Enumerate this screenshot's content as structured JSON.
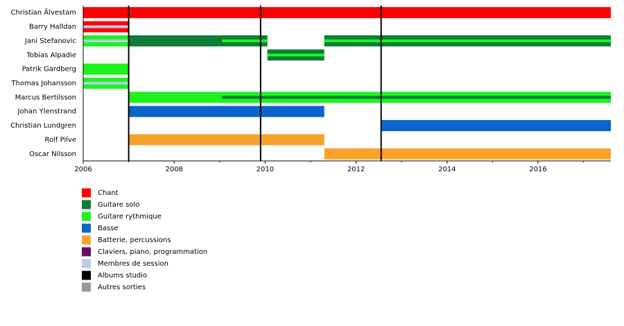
{
  "chart_data": {
    "type": "timeline",
    "rows": [
      "Christian Älvestam",
      "Barry Halldan",
      "Jani Stefanovic",
      "Tobias Alpadie",
      "Patrik Gardberg",
      "Thomas Johansson",
      "Marcus Bertilsson",
      "Johan Ylenstrand",
      "Christian Lundgren",
      "Rolf Pilve",
      "Oscar Nilsson"
    ],
    "xlim": [
      2006,
      2017.6
    ],
    "xticks": [
      2006,
      2008,
      2010,
      2012,
      2014,
      2016
    ],
    "xminor": [
      2007,
      2009,
      2011,
      2013,
      2015,
      2017
    ],
    "series": [
      {
        "name": "Chant",
        "color": "#ff0000",
        "bars": [
          {
            "row": 0,
            "start": 2006,
            "end": 2017.6
          },
          {
            "row": 1,
            "start": 2006,
            "end": 2007
          }
        ],
        "stripes": []
      },
      {
        "name": "Guitare solo",
        "color": "#0d7d38",
        "bars": [
          {
            "row": 2,
            "start": 2007,
            "end": 2010.05
          },
          {
            "row": 2,
            "start": 2011.3,
            "end": 2017.6
          },
          {
            "row": 3,
            "start": 2010.05,
            "end": 2011.3
          }
        ],
        "stripes": [
          {
            "row": 6,
            "start": 2009.05,
            "end": 2017.6
          }
        ]
      },
      {
        "name": "Guitare rythmique",
        "color": "#1ef21e",
        "bars": [
          {
            "row": 2,
            "start": 2006,
            "end": 2007
          },
          {
            "row": 4,
            "start": 2006,
            "end": 2007
          },
          {
            "row": 5,
            "start": 2006,
            "end": 2007
          },
          {
            "row": 6,
            "start": 2007,
            "end": 2017.6
          }
        ],
        "stripes": [
          {
            "row": 2,
            "start": 2009.05,
            "end": 2010.05
          },
          {
            "row": 2,
            "start": 2011.3,
            "end": 2017.6
          },
          {
            "row": 3,
            "start": 2010.05,
            "end": 2011.3
          }
        ]
      },
      {
        "name": "Basse",
        "color": "#0a64cc",
        "bars": [
          {
            "row": 7,
            "start": 2007,
            "end": 2011.3
          },
          {
            "row": 8,
            "start": 2012.55,
            "end": 2017.6
          }
        ],
        "stripes": []
      },
      {
        "name": "Batterie, percussions",
        "color": "#f8a22c",
        "bars": [
          {
            "row": 9,
            "start": 2007,
            "end": 2011.3
          },
          {
            "row": 10,
            "start": 2011.3,
            "end": 2017.6
          }
        ],
        "stripes": []
      },
      {
        "name": "Claviers, piano, programmation",
        "color": "#6a0a6a",
        "bars": [],
        "stripes": []
      },
      {
        "name": "Membres de session",
        "color": "#b8cce8",
        "bars": [],
        "stripes": [
          {
            "row": 1,
            "start": 2006,
            "end": 2007
          },
          {
            "row": 2,
            "start": 2006,
            "end": 2007
          },
          {
            "row": 5,
            "start": 2006,
            "end": 2007
          }
        ]
      },
      {
        "name": "Albums studio",
        "color": "#000000",
        "lines": [
          2007,
          2009.9,
          2012.55
        ]
      },
      {
        "name": "Autres sorties",
        "color": "#999999",
        "lines": []
      }
    ]
  }
}
